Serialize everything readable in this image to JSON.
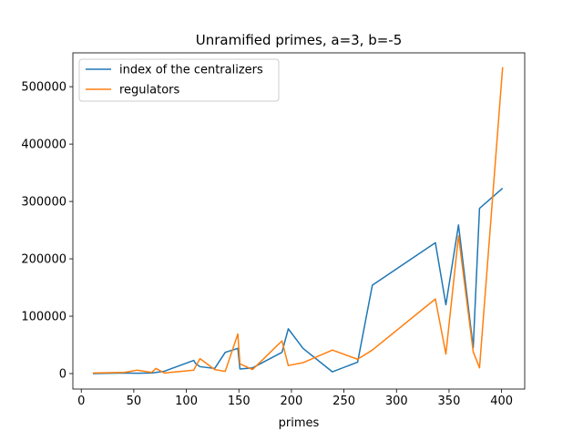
{
  "chart_data": {
    "type": "line",
    "title": "Unramified primes, a=3, b=-5",
    "xlabel": "primes",
    "ylabel": "",
    "xlim": [
      -8,
      422
    ],
    "ylim": [
      -27000,
      559000
    ],
    "xticks": [
      0,
      50,
      100,
      150,
      200,
      250,
      300,
      350,
      400
    ],
    "yticks": [
      0,
      100000,
      200000,
      300000,
      400000,
      500000
    ],
    "legend_position": "upper-left",
    "grid": false,
    "series": [
      {
        "name": "index of the centralizers",
        "color": "#1f77b4",
        "x": [
          11,
          41,
          53,
          67,
          71,
          79,
          107,
          109,
          113,
          127,
          137,
          149,
          151,
          163,
          191,
          197,
          211,
          239,
          263,
          277,
          337,
          347,
          359,
          373,
          379,
          401
        ],
        "y": [
          0,
          1000,
          500,
          1000,
          2000,
          4000,
          23000,
          17000,
          12000,
          9000,
          37000,
          44000,
          8000,
          10000,
          37000,
          78000,
          44000,
          3000,
          20000,
          154000,
          228000,
          120000,
          259000,
          45000,
          288000,
          323000
        ]
      },
      {
        "name": "regulators",
        "color": "#ff7f0e",
        "x": [
          11,
          41,
          53,
          67,
          71,
          79,
          107,
          109,
          113,
          127,
          137,
          149,
          151,
          163,
          191,
          197,
          211,
          239,
          263,
          277,
          337,
          347,
          359,
          373,
          379,
          401
        ],
        "y": [
          1000,
          2000,
          6000,
          2000,
          9000,
          1000,
          6000,
          13000,
          26000,
          7000,
          4000,
          69000,
          17000,
          7000,
          57000,
          14000,
          19000,
          41000,
          25000,
          41000,
          130000,
          34000,
          240000,
          38000,
          10000,
          534000
        ]
      }
    ]
  }
}
